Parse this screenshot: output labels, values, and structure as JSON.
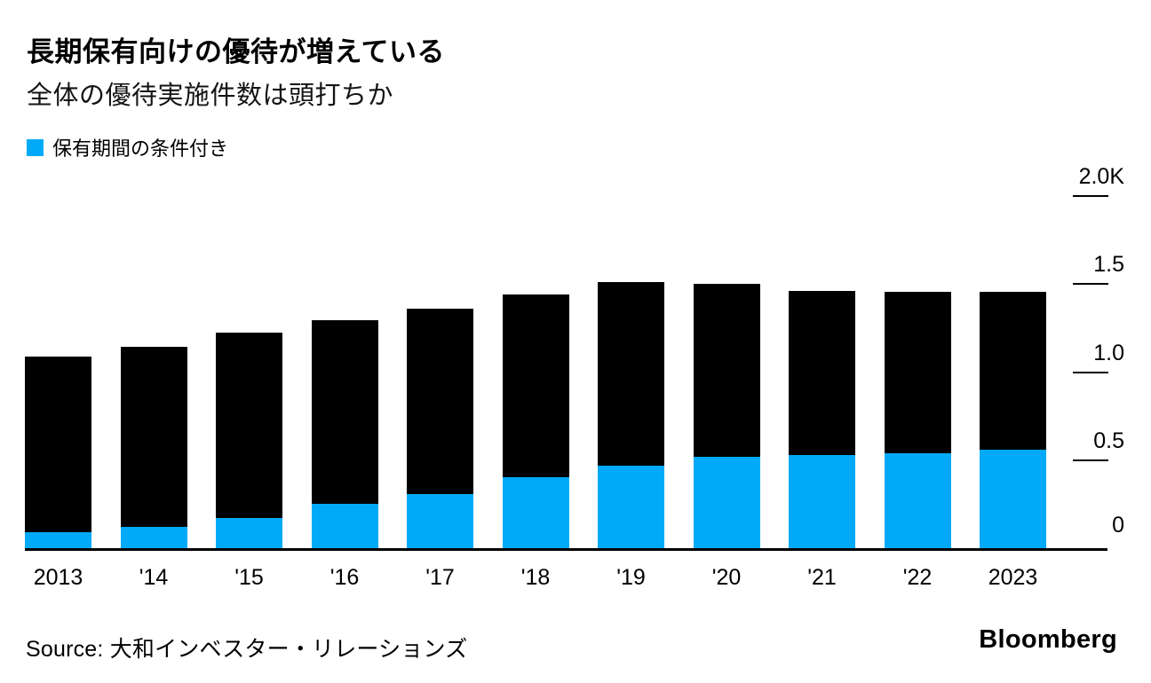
{
  "header": {
    "title": "長期保有向けの優待が増えている",
    "subtitle": "全体の優待実施件数は頭打ちか"
  },
  "legend": {
    "swatch_color": "#00aaf8",
    "label": "保有期間の条件付き"
  },
  "chart_data": {
    "type": "bar",
    "stacked": true,
    "title": "長期保有向けの優待が増えている",
    "subtitle": "全体の優待実施件数は頭打ちか",
    "categories": [
      "2013",
      "'14",
      "'15",
      "'16",
      "'17",
      "'18",
      "'19",
      "'20",
      "'21",
      "'22",
      "2023"
    ],
    "totals": [
      1092,
      1149,
      1229,
      1303,
      1366,
      1447,
      1516,
      1504,
      1468,
      1460,
      1460
    ],
    "series": [
      {
        "name": "保有期間の条件付き",
        "color": "#00aaf8",
        "values": [
          95,
          128,
          178,
          258,
          313,
          408,
          475,
          524,
          534,
          545,
          565
        ]
      }
    ],
    "total_bar_color": "#000000",
    "ylim": [
      0,
      2000
    ],
    "yticks": [
      {
        "label": "2.0K",
        "value": 2000
      },
      {
        "label": "1.5",
        "value": 1500
      },
      {
        "label": "1.0",
        "value": 1000
      },
      {
        "label": "0.5",
        "value": 500
      },
      {
        "label": "0",
        "value": 0
      }
    ],
    "yaxis_side": "right",
    "grid": false,
    "legend_position": "top-left"
  },
  "footer": {
    "source": "Source: 大和インベスター・リレーションズ",
    "brand": "Bloomberg"
  }
}
